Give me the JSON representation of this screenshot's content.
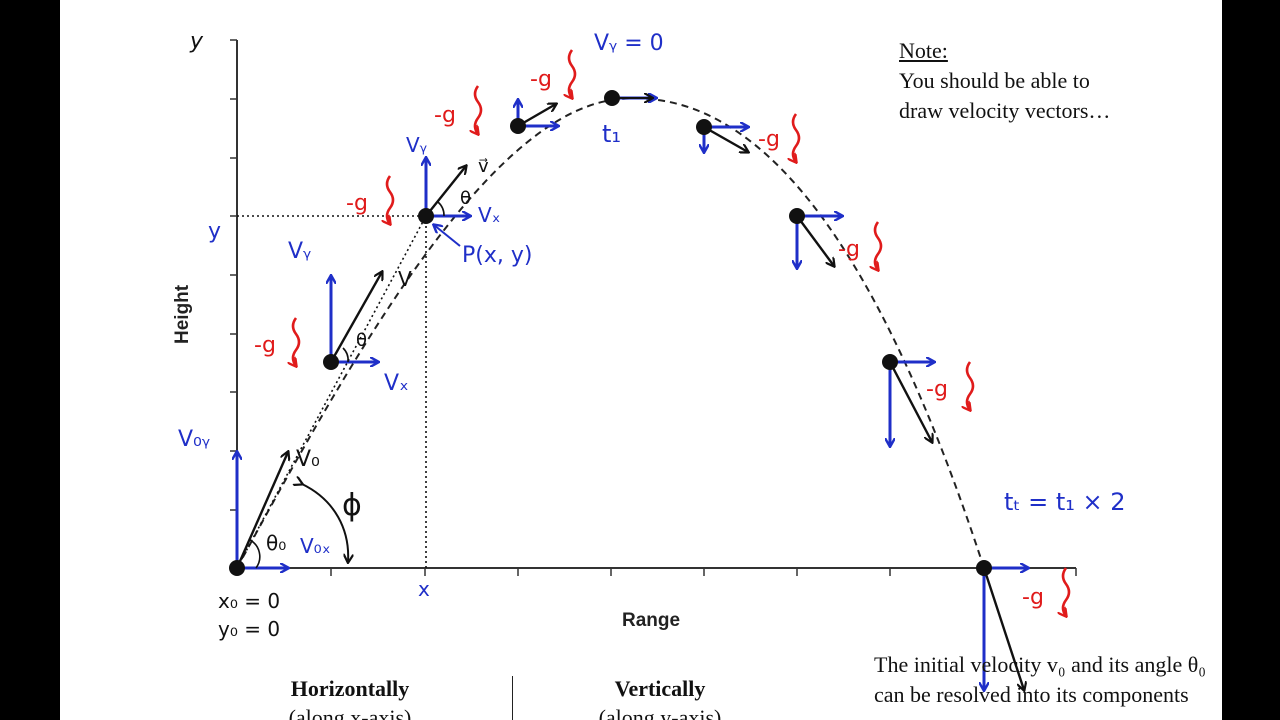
{
  "note": {
    "heading": "Note:",
    "line1": "You should be able to",
    "line2": "draw velocity vectors…"
  },
  "axes": {
    "x_title": "Range",
    "y_title": "Height",
    "y_axis_letter": "y",
    "y_marker": "y",
    "x_marker": "x"
  },
  "annotations": {
    "vy_zero": "Vᵧ = 0",
    "t1": "t₁",
    "total_time": "tₜ = t₁ × 2",
    "point": "P(x, y)",
    "vx": "Vₓ",
    "vy": "Vᵧ",
    "v": "V",
    "v_vec": "v⃗",
    "theta": "θ",
    "v0": "V₀",
    "v0x": "V₀ₓ",
    "v0y": "V₀ᵧ",
    "theta0": "θ₀",
    "phi": "ϕ",
    "x0": "x₀ = 0",
    "y0": "y₀ = 0",
    "minus_g": "-g"
  },
  "caption": {
    "text": "The initial velocity v₀ and its angle θ₀ can be resolved into its components"
  },
  "columns": {
    "horizontal": "Horizontally",
    "horizontal_sub": "(along x-axis)",
    "vertical": "Vertically",
    "vertical_sub": "(along y-axis)"
  },
  "colors": {
    "blue": "#1f2fc8",
    "red": "#e01b1b",
    "black": "#111111"
  }
}
